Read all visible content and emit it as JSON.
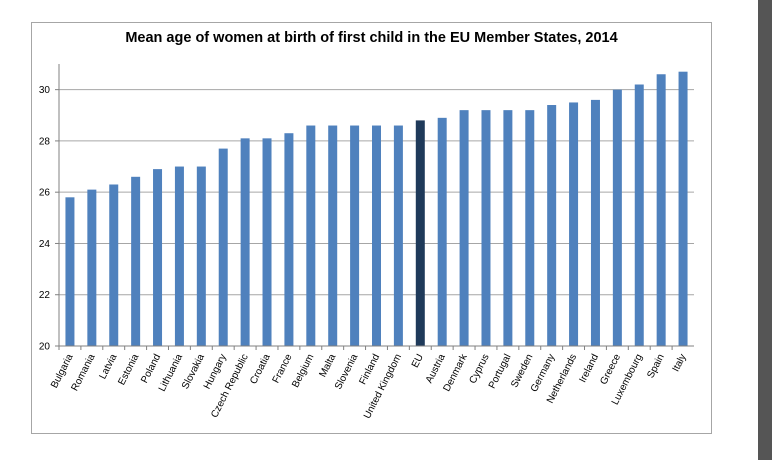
{
  "chart_data": {
    "type": "bar",
    "title": "Mean age of women at birth of first child in the EU Member States, 2014",
    "xlabel": "",
    "ylabel": "",
    "ylim": [
      20,
      31
    ],
    "yticks": [
      20,
      22,
      24,
      26,
      28,
      30
    ],
    "grid": true,
    "categories": [
      "Bulgaria",
      "Romania",
      "Latvia",
      "Estonia",
      "Poland",
      "Lithuania",
      "Slovakia",
      "Hungary",
      "Czech Republic",
      "Croatia",
      "France",
      "Belgium",
      "Malta",
      "Slovenia",
      "Finland",
      "United Kingdom",
      "EU",
      "Austria",
      "Denmark",
      "Cyprus",
      "Portugal",
      "Sweden",
      "Germany",
      "Netherlands",
      "Ireland",
      "Greece",
      "Luxembourg",
      "Spain",
      "Italy"
    ],
    "values": [
      25.8,
      26.1,
      26.3,
      26.6,
      26.9,
      27.0,
      27.0,
      27.7,
      28.1,
      28.1,
      28.3,
      28.6,
      28.6,
      28.6,
      28.6,
      28.6,
      28.8,
      28.9,
      29.2,
      29.2,
      29.2,
      29.2,
      29.4,
      29.5,
      29.6,
      30.0,
      30.2,
      30.6,
      30.7
    ],
    "highlight": "EU",
    "colors": {
      "bar": "#4f81bd",
      "highlight": "#1f3a5a",
      "grid": "#a6a6a6"
    }
  }
}
